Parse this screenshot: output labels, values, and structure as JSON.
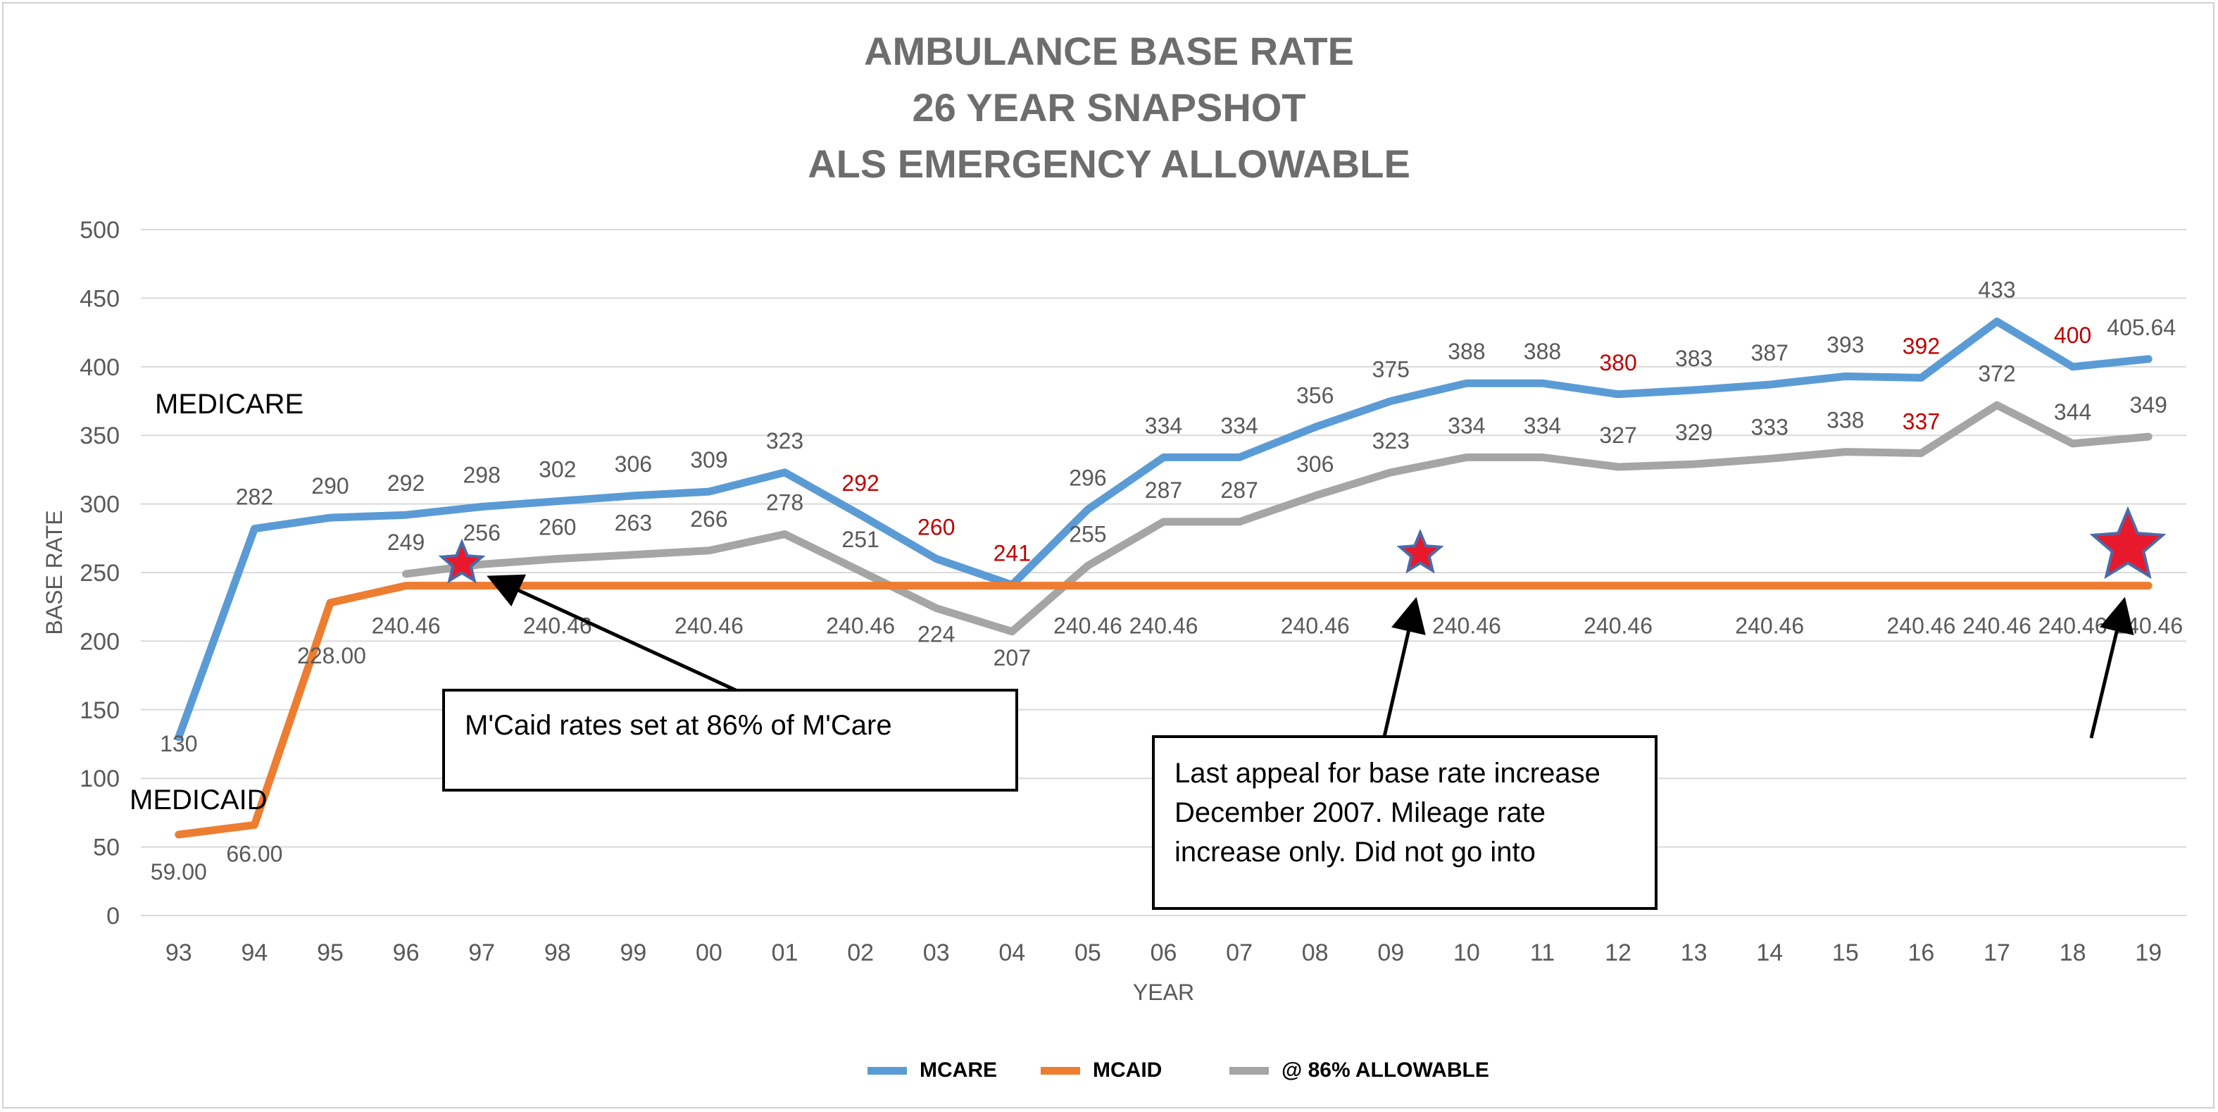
{
  "chart_data": {
    "type": "line",
    "title": [
      "AMBULANCE BASE RATE",
      "26 YEAR SNAPSHOT",
      "ALS EMERGENCY ALLOWABLE"
    ],
    "xlabel": "YEAR",
    "ylabel": "BASE RATE",
    "ylim": [
      0,
      500
    ],
    "yticks": [
      0,
      50,
      100,
      150,
      200,
      250,
      300,
      350,
      400,
      450,
      500
    ],
    "grid": true,
    "legend_position": "bottom",
    "categories": [
      "93",
      "94",
      "95",
      "96",
      "97",
      "98",
      "99",
      "00",
      "01",
      "02",
      "03",
      "04",
      "05",
      "06",
      "07",
      "08",
      "09",
      "10",
      "11",
      "12",
      "13",
      "14",
      "15",
      "16",
      "17",
      "18",
      "19"
    ],
    "series": [
      {
        "name": "MCARE",
        "color": "#5b9bd5",
        "values": [
          130,
          282,
          290,
          292,
          298,
          302,
          306,
          309,
          323,
          292,
          260,
          241,
          296,
          334,
          334,
          356,
          375,
          388,
          388,
          380,
          383,
          387,
          393,
          392,
          433,
          400,
          405.64
        ],
        "labels": [
          "130",
          "282",
          "290",
          "292",
          "298",
          "302",
          "306",
          "309",
          "323",
          "292",
          "260",
          "241",
          "296",
          "334",
          "334",
          "356",
          "375",
          "388",
          "388",
          "380",
          "383",
          "387",
          "393",
          "392",
          "433",
          "400",
          "405.64"
        ],
        "label_colors": [
          "#595959",
          "#595959",
          "#595959",
          "#595959",
          "#595959",
          "#595959",
          "#595959",
          "#595959",
          "#595959",
          "#c00000",
          "#c00000",
          "#c00000",
          "#595959",
          "#595959",
          "#595959",
          "#595959",
          "#595959",
          "#595959",
          "#595959",
          "#c00000",
          "#595959",
          "#595959",
          "#595959",
          "#c00000",
          "#595959",
          "#c00000",
          "#595959"
        ]
      },
      {
        "name": "MCAID",
        "color": "#ed7d31",
        "values": [
          59,
          66,
          228,
          240.46,
          240.46,
          240.46,
          240.46,
          240.46,
          240.46,
          240.46,
          240.46,
          240.46,
          240.46,
          240.46,
          240.46,
          240.46,
          240.46,
          240.46,
          240.46,
          240.46,
          240.46,
          240.46,
          240.46,
          240.46,
          240.46,
          240.46,
          240.46
        ],
        "labels": [
          "59.00",
          "66.00",
          "228.00",
          "240.46",
          "",
          "240.46",
          "",
          "240.46",
          "",
          "240.46",
          "",
          "",
          "240.46",
          "240.46",
          "",
          "240.46",
          "",
          "240.46",
          "",
          "240.46",
          "",
          "240.46",
          "",
          "240.46",
          "240.46",
          "240.46",
          "240.46"
        ]
      },
      {
        "name": "@ 86% ALLOWABLE",
        "color": "#a5a5a5",
        "values": [
          null,
          null,
          null,
          249,
          256,
          260,
          263,
          266,
          278,
          251,
          224,
          207,
          255,
          287,
          287,
          306,
          323,
          334,
          334,
          327,
          329,
          333,
          338,
          337,
          372,
          344,
          349
        ],
        "labels": [
          "",
          "",
          "",
          "249",
          "256",
          "260",
          "263",
          "266",
          "278",
          "251",
          "224",
          "207",
          "255",
          "287",
          "287",
          "306",
          "323",
          "334",
          "334",
          "327",
          "329",
          "333",
          "338",
          "337",
          "372",
          "344",
          "349"
        ],
        "label_colors": [
          "",
          "",
          "",
          "#595959",
          "#595959",
          "#595959",
          "#595959",
          "#595959",
          "#595959",
          "#595959",
          "#595959",
          "#595959",
          "#595959",
          "#595959",
          "#595959",
          "#595959",
          "#595959",
          "#595959",
          "#595959",
          "#595959",
          "#595959",
          "#595959",
          "#595959",
          "#c00000",
          "#595959",
          "#595959",
          "#595959"
        ]
      }
    ],
    "annotations": {
      "medicare_label": "MEDICARE",
      "medicaid_label": "MEDICAID",
      "callout_1": "M'Caid rates set at 86% of M'Care",
      "callout_2": [
        "Last appeal for base rate increase",
        "December 2007. Mileage rate",
        "increase only. Did not go into"
      ]
    },
    "colors": {
      "star": "#e8192c",
      "star_outline": "#4a6aa8",
      "axis_text": "#595959",
      "grid": "#d9d9d9"
    }
  }
}
